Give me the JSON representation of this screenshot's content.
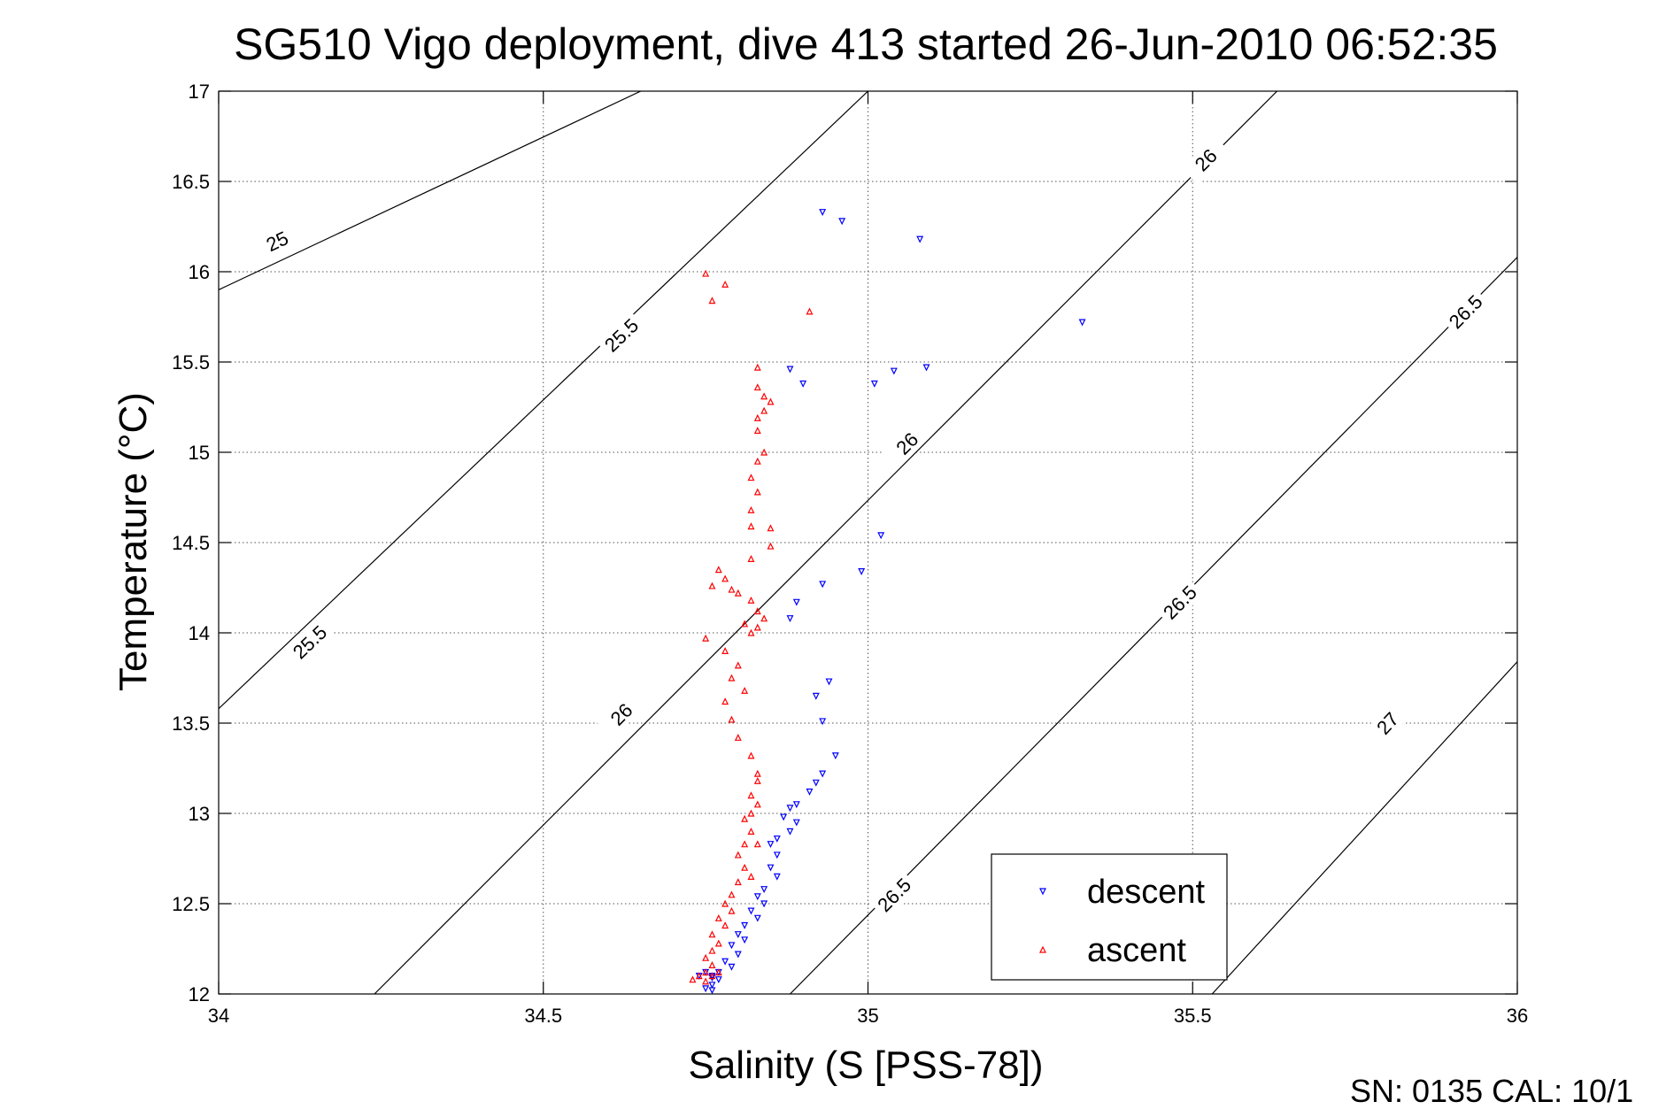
{
  "chart_data": {
    "type": "scatter",
    "title": "SG510 Vigo deployment, dive 413 started 26-Jun-2010 06:52:35",
    "xlabel": "Salinity (S [PSS-78])",
    "ylabel": "Temperature (°C)",
    "xlim": [
      34,
      36
    ],
    "ylim": [
      12,
      17
    ],
    "xticks": [
      "34",
      "34.5",
      "35",
      "35.5",
      "36"
    ],
    "yticks": [
      "12",
      "12.5",
      "13",
      "13.5",
      "14",
      "14.5",
      "15",
      "15.5",
      "16",
      "16.5",
      "17"
    ],
    "grid": true,
    "legend_position": "bottom-right",
    "footer": "SN: 0135  CAL: 10/1",
    "contours": [
      {
        "label": "25",
        "points": [
          [
            34.0,
            15.9
          ],
          [
            34.65,
            17.0
          ]
        ],
        "labels_at": [
          [
            34.09,
            16.17
          ]
        ]
      },
      {
        "label": "25.5",
        "points": [
          [
            34.0,
            13.58
          ],
          [
            35.0,
            17.0
          ]
        ],
        "labels_at": [
          [
            34.14,
            13.95
          ],
          [
            34.62,
            15.65
          ]
        ]
      },
      {
        "label": "26",
        "points": [
          [
            34.24,
            12.0
          ],
          [
            35.63,
            17.0
          ]
        ],
        "labels_at": [
          [
            34.62,
            13.55
          ],
          [
            35.06,
            15.05
          ],
          [
            35.52,
            16.62
          ]
        ]
      },
      {
        "label": "26.5",
        "points": [
          [
            34.88,
            12.0
          ],
          [
            36.0,
            16.08
          ]
        ],
        "labels_at": [
          [
            35.04,
            12.55
          ],
          [
            35.48,
            14.17
          ],
          [
            35.92,
            15.78
          ]
        ]
      },
      {
        "label": "27",
        "points": [
          [
            35.53,
            12.0
          ],
          [
            36.0,
            13.84
          ]
        ],
        "labels_at": [
          [
            35.8,
            13.5
          ]
        ]
      }
    ],
    "series": [
      {
        "name": "descent",
        "color": "#0000ff",
        "marker": "triangle-down",
        "points": [
          [
            34.93,
            16.33
          ],
          [
            34.96,
            16.28
          ],
          [
            35.08,
            16.18
          ],
          [
            35.33,
            15.72
          ],
          [
            34.88,
            15.46
          ],
          [
            34.9,
            15.38
          ],
          [
            35.01,
            15.38
          ],
          [
            35.04,
            15.45
          ],
          [
            35.09,
            15.47
          ],
          [
            35.02,
            14.54
          ],
          [
            34.99,
            14.34
          ],
          [
            34.93,
            14.27
          ],
          [
            34.89,
            14.17
          ],
          [
            34.88,
            14.08
          ],
          [
            34.94,
            13.73
          ],
          [
            34.92,
            13.65
          ],
          [
            34.93,
            13.51
          ],
          [
            34.95,
            13.32
          ],
          [
            34.93,
            13.22
          ],
          [
            34.92,
            13.17
          ],
          [
            34.91,
            13.12
          ],
          [
            34.89,
            13.05
          ],
          [
            34.88,
            13.03
          ],
          [
            34.87,
            12.98
          ],
          [
            34.89,
            12.95
          ],
          [
            34.88,
            12.9
          ],
          [
            34.86,
            12.86
          ],
          [
            34.85,
            12.83
          ],
          [
            34.86,
            12.77
          ],
          [
            34.85,
            12.7
          ],
          [
            34.86,
            12.65
          ],
          [
            34.84,
            12.58
          ],
          [
            34.83,
            12.54
          ],
          [
            34.84,
            12.5
          ],
          [
            34.82,
            12.46
          ],
          [
            34.83,
            12.42
          ],
          [
            34.81,
            12.38
          ],
          [
            34.8,
            12.33
          ],
          [
            34.81,
            12.3
          ],
          [
            34.79,
            12.27
          ],
          [
            34.8,
            12.22
          ],
          [
            34.78,
            12.18
          ],
          [
            34.79,
            12.15
          ],
          [
            34.77,
            12.12
          ],
          [
            34.76,
            12.1
          ],
          [
            34.77,
            12.08
          ],
          [
            34.76,
            12.05
          ],
          [
            34.75,
            12.03
          ],
          [
            34.76,
            12.02
          ],
          [
            34.74,
            12.1
          ],
          [
            34.75,
            12.12
          ],
          [
            34.76,
            12.1
          ],
          [
            34.76,
            12.09
          ]
        ]
      },
      {
        "name": "ascent",
        "color": "#ff0000",
        "marker": "triangle-up",
        "points": [
          [
            34.75,
            15.99
          ],
          [
            34.78,
            15.93
          ],
          [
            34.76,
            15.84
          ],
          [
            34.91,
            15.78
          ],
          [
            34.83,
            15.47
          ],
          [
            34.83,
            15.36
          ],
          [
            34.84,
            15.31
          ],
          [
            34.85,
            15.28
          ],
          [
            34.84,
            15.23
          ],
          [
            34.83,
            15.19
          ],
          [
            34.83,
            15.12
          ],
          [
            34.84,
            15.0
          ],
          [
            34.83,
            14.95
          ],
          [
            34.82,
            14.86
          ],
          [
            34.83,
            14.78
          ],
          [
            34.82,
            14.68
          ],
          [
            34.82,
            14.59
          ],
          [
            34.85,
            14.58
          ],
          [
            34.85,
            14.48
          ],
          [
            34.82,
            14.41
          ],
          [
            34.77,
            14.35
          ],
          [
            34.78,
            14.3
          ],
          [
            34.79,
            14.24
          ],
          [
            34.76,
            14.26
          ],
          [
            34.8,
            14.22
          ],
          [
            34.82,
            14.18
          ],
          [
            34.83,
            14.12
          ],
          [
            34.84,
            14.08
          ],
          [
            34.83,
            14.03
          ],
          [
            34.82,
            14.0
          ],
          [
            34.81,
            14.05
          ],
          [
            34.75,
            13.97
          ],
          [
            34.78,
            13.9
          ],
          [
            34.8,
            13.82
          ],
          [
            34.79,
            13.75
          ],
          [
            34.81,
            13.68
          ],
          [
            34.78,
            13.62
          ],
          [
            34.79,
            13.52
          ],
          [
            34.8,
            13.42
          ],
          [
            34.82,
            13.32
          ],
          [
            34.83,
            13.22
          ],
          [
            34.83,
            13.18
          ],
          [
            34.82,
            13.1
          ],
          [
            34.83,
            13.05
          ],
          [
            34.82,
            13.0
          ],
          [
            34.81,
            12.97
          ],
          [
            34.82,
            12.9
          ],
          [
            34.81,
            12.83
          ],
          [
            34.83,
            12.83
          ],
          [
            34.8,
            12.77
          ],
          [
            34.81,
            12.7
          ],
          [
            34.82,
            12.65
          ],
          [
            34.8,
            12.62
          ],
          [
            34.79,
            12.55
          ],
          [
            34.78,
            12.5
          ],
          [
            34.79,
            12.46
          ],
          [
            34.77,
            12.42
          ],
          [
            34.78,
            12.38
          ],
          [
            34.76,
            12.33
          ],
          [
            34.77,
            12.28
          ],
          [
            34.76,
            12.24
          ],
          [
            34.75,
            12.2
          ],
          [
            34.76,
            12.16
          ],
          [
            34.75,
            12.12
          ],
          [
            34.74,
            12.1
          ],
          [
            34.73,
            12.08
          ],
          [
            34.75,
            12.07
          ],
          [
            34.76,
            12.1
          ],
          [
            34.77,
            12.12
          ]
        ]
      }
    ]
  }
}
